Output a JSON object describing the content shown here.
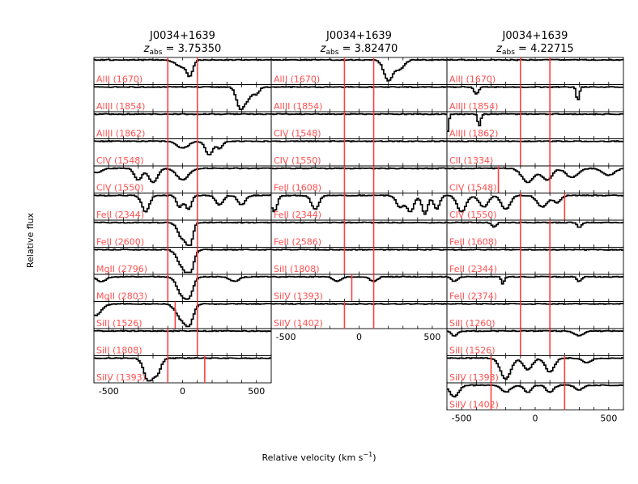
{
  "figure": {
    "ylabel": "Relative flux",
    "xlabel_main": "Relative velocity (km s",
    "xlabel_sup": "−1",
    "xlabel_close": ")"
  },
  "chart_data": [
    {
      "type": "line",
      "object": "J0034+1639",
      "zlabel_var": "z",
      "zlabel_sub": "abs",
      "z_abs": "3.75350",
      "xlim": [
        -600,
        600
      ],
      "xticks": [
        "-500",
        "0",
        "500"
      ],
      "marker_color": "#ff4040",
      "label_color": "#ff5050",
      "panels": [
        {
          "label": "AlII (1670)",
          "markers": [
            -100,
            100
          ],
          "features": [
            {
              "v": 0,
              "depth": 0.3,
              "width": 45
            },
            {
              "v": 50,
              "depth": 0.55,
              "width": 20
            }
          ]
        },
        {
          "label": "AlIII (1854)",
          "markers": [
            -100,
            100
          ],
          "features": [
            {
              "v": 390,
              "depth": 0.9,
              "width": 25
            },
            {
              "v": 440,
              "depth": 0.5,
              "width": 25
            },
            {
              "v": 500,
              "depth": 0.3,
              "width": 20
            }
          ]
        },
        {
          "label": "AlIII (1862)",
          "markers": [
            -100,
            100
          ],
          "features": []
        },
        {
          "label": "CIV (1548)",
          "markers": [
            -100,
            100
          ],
          "features": [
            {
              "v": 0,
              "depth": 0.3,
              "width": 40
            },
            {
              "v": 180,
              "depth": 0.6,
              "width": 25
            },
            {
              "v": 250,
              "depth": 0.3,
              "width": 20
            }
          ]
        },
        {
          "label": "CIV (1550)",
          "markers": [
            -100,
            100
          ],
          "features": [
            {
              "v": -580,
              "depth": 0.2,
              "width": 30
            },
            {
              "v": -300,
              "depth": 0.5,
              "width": 25
            },
            {
              "v": -200,
              "depth": 0.6,
              "width": 30
            },
            {
              "v": 0,
              "depth": 0.5,
              "width": 40
            }
          ]
        },
        {
          "label": "FeII (2344)",
          "markers": [
            -100,
            100
          ],
          "features": [
            {
              "v": -250,
              "depth": 0.7,
              "width": 25
            },
            {
              "v": -20,
              "depth": 0.5,
              "width": 20
            },
            {
              "v": 40,
              "depth": 0.6,
              "width": 20
            },
            {
              "v": 250,
              "depth": 0.4,
              "width": 25
            },
            {
              "v": 400,
              "depth": 0.4,
              "width": 25
            }
          ]
        },
        {
          "label": "FeII (2600)",
          "markers": [
            -100,
            100
          ],
          "features": [
            {
              "v": 0,
              "depth": 0.7,
              "width": 30
            },
            {
              "v": 50,
              "depth": 0.9,
              "width": 20
            }
          ]
        },
        {
          "label": "MgII (2796)",
          "markers": [
            -100,
            100
          ],
          "features": [
            {
              "v": 0,
              "depth": 0.7,
              "width": 35
            },
            {
              "v": 50,
              "depth": 0.9,
              "width": 25
            }
          ]
        },
        {
          "label": "MgII (2803)",
          "markers": [
            -100,
            100
          ],
          "features": [
            {
              "v": -550,
              "depth": 0.2,
              "width": 30
            },
            {
              "v": 0,
              "depth": 0.8,
              "width": 35
            },
            {
              "v": 50,
              "depth": 0.6,
              "width": 25
            },
            {
              "v": 350,
              "depth": 0.2,
              "width": 30
            }
          ]
        },
        {
          "label": "SiII (1526)",
          "markers": [
            -50,
            100
          ],
          "features": [
            {
              "v": -590,
              "depth": 0.5,
              "width": 40
            },
            {
              "v": 0,
              "depth": 0.7,
              "width": 40
            },
            {
              "v": 50,
              "depth": 0.6,
              "width": 25
            }
          ]
        },
        {
          "label": "SiII (1808)",
          "markers": [
            -100,
            100
          ],
          "features": []
        },
        {
          "label": "SiIV (1393)",
          "markers": [
            -100,
            150
          ],
          "features": [
            {
              "v": -230,
              "depth": 1.0,
              "width": 30
            },
            {
              "v": -170,
              "depth": 0.6,
              "width": 25
            }
          ]
        }
      ]
    },
    {
      "type": "line",
      "object": "J0034+1639",
      "zlabel_var": "z",
      "zlabel_sub": "abs",
      "z_abs": "3.82470",
      "xlim": [
        -600,
        600
      ],
      "xticks": [
        "-500",
        "0",
        "500"
      ],
      "marker_color": "#ff4040",
      "label_color": "#ff5050",
      "panels": [
        {
          "label": "AlII (1670)",
          "markers": [
            -100,
            100
          ],
          "features": [
            {
              "v": 200,
              "depth": 0.9,
              "width": 30
            },
            {
              "v": 280,
              "depth": 0.4,
              "width": 30
            }
          ]
        },
        {
          "label": "AlIII (1854)",
          "markers": [
            -100,
            100
          ],
          "features": []
        },
        {
          "label": "CIV (1548)",
          "markers": [
            -100,
            100
          ],
          "features": []
        },
        {
          "label": "CIV (1550)",
          "markers": [
            -100,
            100
          ],
          "features": []
        },
        {
          "label": "FeII (1608)",
          "markers": [
            -100,
            100
          ],
          "features": []
        },
        {
          "label": "FeII (2344)",
          "markers": [
            -100,
            100
          ],
          "features": [
            {
              "v": -580,
              "depth": 0.7,
              "width": 20
            },
            {
              "v": -300,
              "depth": 0.6,
              "width": 25
            },
            {
              "v": 280,
              "depth": 0.5,
              "width": 25
            },
            {
              "v": 350,
              "depth": 0.7,
              "width": 25
            },
            {
              "v": 450,
              "depth": 0.8,
              "width": 20
            },
            {
              "v": 530,
              "depth": 0.6,
              "width": 20
            }
          ]
        },
        {
          "label": "FeII (2586)",
          "markers": [
            -100,
            100
          ],
          "features": []
        },
        {
          "label": "SiII (1808)",
          "markers": [
            -100,
            100
          ],
          "features": []
        },
        {
          "label": "SiIV (1393)",
          "markers": [
            -50,
            100
          ],
          "features": [
            {
              "v": -150,
              "depth": 0.2,
              "width": 25
            },
            {
              "v": 100,
              "depth": 0.2,
              "width": 25
            }
          ]
        },
        {
          "label": "SiIV (1402)",
          "markers": [
            -100,
            100
          ],
          "features": []
        }
      ]
    },
    {
      "type": "line",
      "object": "J0034+1639",
      "zlabel_var": "z",
      "zlabel_sub": "abs",
      "z_abs": "4.22715",
      "xlim": [
        -600,
        600
      ],
      "xticks": [
        "-500",
        "0",
        "500"
      ],
      "marker_color": "#ff4040",
      "label_color": "#ff5050",
      "panels": [
        {
          "label": "AlII (1670)",
          "markers": [
            -100,
            100
          ],
          "features": []
        },
        {
          "label": "AlIII (1854)",
          "markers": [
            -100,
            100
          ],
          "features": [
            {
              "v": -400,
              "depth": 0.3,
              "width": 15
            },
            {
              "v": 290,
              "depth": 0.6,
              "width": 10
            }
          ]
        },
        {
          "label": "AlIII (1862)",
          "markers": [
            -100,
            100
          ],
          "features": [
            {
              "v": -600,
              "depth": 0.9,
              "width": 10
            },
            {
              "v": -380,
              "depth": 0.5,
              "width": 10
            }
          ]
        },
        {
          "label": "CII (1334)",
          "markers": [
            -100,
            100
          ],
          "features": []
        },
        {
          "label": "CIV (1548)",
          "markers": [
            -250,
            100
          ],
          "features": [
            {
              "v": -50,
              "depth": 0.6,
              "width": 40
            },
            {
              "v": 80,
              "depth": 0.5,
              "width": 35
            },
            {
              "v": 250,
              "depth": 0.4,
              "width": 40
            },
            {
              "v": 500,
              "depth": 0.3,
              "width": 40
            }
          ]
        },
        {
          "label": "CIV (1550)",
          "markers": [
            -100,
            200
          ],
          "features": [
            {
              "v": -500,
              "depth": 0.7,
              "width": 30
            },
            {
              "v": -350,
              "depth": 0.5,
              "width": 30
            },
            {
              "v": -200,
              "depth": 0.6,
              "width": 30
            },
            {
              "v": 50,
              "depth": 0.5,
              "width": 35
            },
            {
              "v": 150,
              "depth": 0.3,
              "width": 25
            }
          ]
        },
        {
          "label": "FeII (1608)",
          "markers": [
            -100,
            100
          ],
          "features": [
            {
              "v": -280,
              "depth": 0.2,
              "width": 15
            },
            {
              "v": 300,
              "depth": 0.2,
              "width": 15
            }
          ]
        },
        {
          "label": "FeII (2344)",
          "markers": [
            -100,
            100
          ],
          "features": []
        },
        {
          "label": "FeII (2374)",
          "markers": [
            -100,
            100
          ],
          "features": [
            {
              "v": -550,
              "depth": 0.2,
              "width": 20
            },
            {
              "v": -220,
              "depth": 0.3,
              "width": 10
            },
            {
              "v": 300,
              "depth": 0.2,
              "width": 15
            }
          ]
        },
        {
          "label": "SiII (1260)",
          "markers": [
            -100,
            100
          ],
          "features": []
        },
        {
          "label": "SiII (1526)",
          "markers": [
            -100,
            100
          ],
          "features": [
            {
              "v": -550,
              "depth": 0.2,
              "width": 20
            },
            {
              "v": 300,
              "depth": 0.2,
              "width": 30
            }
          ]
        },
        {
          "label": "SiIV (1393)",
          "markers": [
            -300,
            200
          ],
          "features": [
            {
              "v": -200,
              "depth": 0.9,
              "width": 35
            },
            {
              "v": -50,
              "depth": 0.5,
              "width": 30
            },
            {
              "v": 100,
              "depth": 0.6,
              "width": 30
            },
            {
              "v": 350,
              "depth": 0.2,
              "width": 30
            }
          ]
        },
        {
          "label": "SiIV (1402)",
          "markers": [
            -300,
            200
          ],
          "features": [
            {
              "v": -550,
              "depth": 0.5,
              "width": 30
            },
            {
              "v": -200,
              "depth": 0.3,
              "width": 30
            },
            {
              "v": -50,
              "depth": 0.3,
              "width": 25
            },
            {
              "v": 100,
              "depth": 0.3,
              "width": 25
            },
            {
              "v": 300,
              "depth": 0.2,
              "width": 25
            }
          ]
        }
      ]
    }
  ]
}
